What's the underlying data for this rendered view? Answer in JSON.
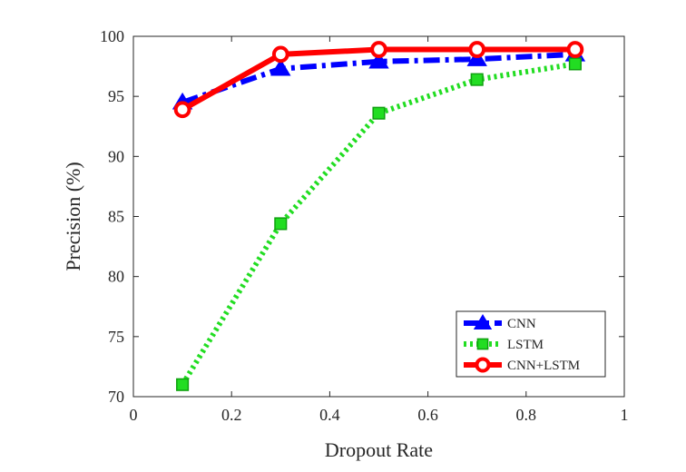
{
  "chart_data": {
    "type": "line",
    "xlabel": "Dropout Rate",
    "ylabel": "Precision (%)",
    "xlim": [
      0,
      1
    ],
    "ylim": [
      70,
      100
    ],
    "x_ticks": [
      "0",
      "0.2",
      "0.4",
      "0.6",
      "0.8",
      "1"
    ],
    "y_ticks": [
      "70",
      "75",
      "80",
      "85",
      "90",
      "95",
      "100"
    ],
    "grid": false,
    "legend_position": "bottom-right",
    "x": [
      0.1,
      0.3,
      0.5,
      0.7,
      0.9
    ],
    "series": [
      {
        "name": "CNN",
        "values": [
          94.5,
          97.3,
          97.9,
          98.1,
          98.5
        ],
        "color": "#0000ff",
        "line_style": "dash-dot",
        "marker": "triangle"
      },
      {
        "name": "LSTM",
        "values": [
          71.0,
          84.4,
          93.6,
          96.4,
          97.7
        ],
        "color": "#22dd22",
        "line_style": "dotted",
        "marker": "square"
      },
      {
        "name": "CNN+LSTM",
        "values": [
          93.9,
          98.5,
          98.9,
          98.9,
          98.9
        ],
        "color": "#ff0000",
        "line_style": "solid",
        "marker": "circle"
      }
    ]
  }
}
